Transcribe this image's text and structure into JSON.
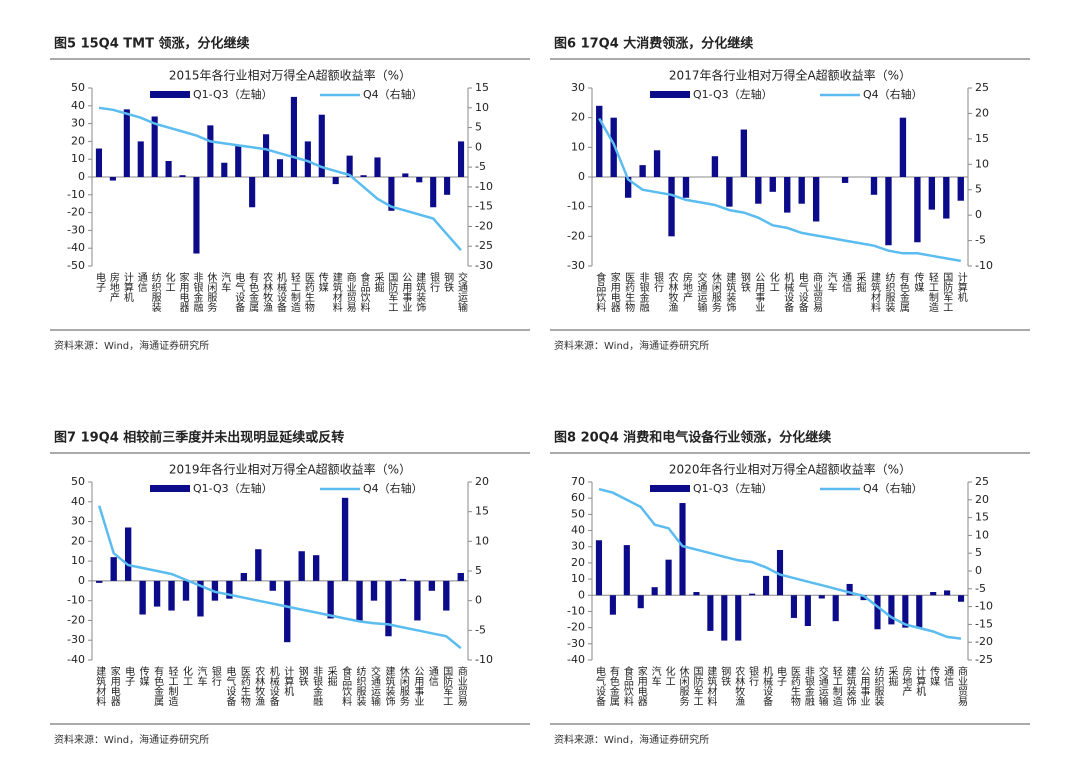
{
  "chart_data": [
    {
      "type": "bar_line",
      "caption": "图5 15Q4 TMT 领涨，分化继续",
      "title": "2015年各行业相对万得全A超额收益率（%）",
      "source": "资料来源：Wind，海通证券研究所",
      "categories": [
        "电子",
        "房地产",
        "计算机",
        "通信",
        "纺织服装",
        "化工",
        "家用电器",
        "非银金融",
        "休闲服务",
        "汽车",
        "电气设备",
        "有色金属",
        "农林牧渔",
        "机械设备",
        "轻工制造",
        "医药生物",
        "传媒",
        "建筑材料",
        "商业贸易",
        "食品饮料",
        "采掘",
        "国防军工",
        "公用事业",
        "建筑装饰",
        "银行",
        "钢铁",
        "交通运输"
      ],
      "series": [
        {
          "name": "Q1-Q3（左轴）",
          "color": "#0c0c8a",
          "values": [
            16,
            -2,
            38,
            20,
            34,
            9,
            1,
            -43,
            29,
            8,
            18,
            -17,
            24,
            10,
            45,
            20,
            35,
            -4,
            12,
            1,
            11,
            -19,
            2,
            -3,
            -17,
            -10,
            20
          ]
        },
        {
          "name": "Q4（右轴）",
          "color": "#5bbcf0",
          "axis": "y2",
          "values": [
            10,
            9.5,
            8.5,
            7.5,
            6,
            5,
            4,
            3,
            1.5,
            1,
            0.5,
            0,
            -0.5,
            -1.5,
            -2.5,
            -3.5,
            -5,
            -6,
            -7,
            -10,
            -13,
            -15,
            -16,
            -17,
            -18,
            -22,
            -26
          ]
        }
      ],
      "ylim": [
        -50,
        50
      ],
      "yticks": [
        -50,
        -40,
        -30,
        -20,
        -10,
        0,
        10,
        20,
        30,
        40,
        50
      ],
      "y2lim": [
        -30,
        15
      ],
      "y2ticks": [
        -30,
        -25,
        -20,
        -15,
        -10,
        -5,
        0,
        5,
        10,
        15
      ]
    },
    {
      "type": "bar_line",
      "caption": "图6 17Q4 大消费领涨，分化继续",
      "title": "2017年各行业相对万得全A超额收益率（%）",
      "source": "资料来源：Wind，海通证券研究所",
      "categories": [
        "食品饮料",
        "家用电器",
        "医药生物",
        "非银金融",
        "银行",
        "农林牧渔",
        "房地产",
        "交通运输",
        "休闲服务",
        "建筑装饰",
        "钢铁",
        "公用事业",
        "化工",
        "机械设备",
        "电气设备",
        "商业贸易",
        "汽车",
        "通信",
        "采掘",
        "建筑材料",
        "纺织服装",
        "有色金属",
        "传媒",
        "轻工制造",
        "国防军工",
        "计算机"
      ],
      "series": [
        {
          "name": "Q1-Q3（左轴）",
          "color": "#0c0c8a",
          "values": [
            24,
            20,
            -7,
            4,
            9,
            -20,
            -7,
            0,
            7,
            -10,
            16,
            -9,
            -5,
            -12,
            -9,
            -15,
            0,
            -2,
            0,
            -6,
            -23,
            20,
            -22,
            -11,
            -14,
            -8
          ]
        },
        {
          "name": "Q4（右轴）",
          "color": "#5bbcf0",
          "axis": "y2",
          "values": [
            19,
            14,
            7,
            5,
            4.5,
            4,
            3,
            2.5,
            2,
            1,
            0.5,
            -0.5,
            -2,
            -2.5,
            -3.5,
            -4,
            -4.5,
            -5,
            -5.5,
            -6,
            -7,
            -7.5,
            -7.5,
            -8,
            -8.5,
            -9
          ]
        }
      ],
      "ylim": [
        -30,
        30
      ],
      "yticks": [
        -30,
        -20,
        -10,
        0,
        10,
        20,
        30
      ],
      "y2lim": [
        -10,
        25
      ],
      "y2ticks": [
        -10,
        -5,
        0,
        5,
        10,
        15,
        20,
        25
      ]
    },
    {
      "type": "bar_line",
      "caption": "图7 19Q4 相较前三季度并未出现明显延续或反转",
      "title": "2019年各行业相对万得全A超额收益率（%）",
      "source": "资料来源：Wind，海通证券研究所",
      "categories": [
        "建筑材料",
        "家用电器",
        "电子",
        "传媒",
        "有色金属",
        "轻工制造",
        "化工",
        "汽车",
        "银行",
        "电气设备",
        "医药生物",
        "农林牧渔",
        "机械设备",
        "计算机",
        "钢铁",
        "非银金融",
        "采掘",
        "食品饮料",
        "纺织服装",
        "交通运输",
        "建筑装饰",
        "休闲服务",
        "公用事业",
        "通信",
        "国防军工",
        "商业贸易"
      ],
      "series": [
        {
          "name": "Q1-Q3（左轴）",
          "color": "#0c0c8a",
          "values": [
            -1,
            12,
            27,
            -17,
            -13,
            -15,
            -10,
            -18,
            -10,
            -9,
            4,
            16,
            -5,
            -31,
            15,
            13,
            -19,
            42,
            -20,
            -10,
            -28,
            1,
            -20,
            -5,
            -15,
            4
          ]
        },
        {
          "name": "Q4（右轴）",
          "color": "#5bbcf0",
          "axis": "y2",
          "values": [
            16,
            8,
            6,
            5.5,
            5,
            4.5,
            3.5,
            2.5,
            1.5,
            1,
            0.5,
            0,
            -0.5,
            -1,
            -1.5,
            -2,
            -2.5,
            -3,
            -3.5,
            -3.8,
            -4,
            -4.5,
            -5,
            -5.5,
            -6,
            -8
          ]
        }
      ],
      "ylim": [
        -40,
        50
      ],
      "yticks": [
        -40,
        -30,
        -20,
        -10,
        0,
        10,
        20,
        30,
        40,
        50
      ],
      "y2lim": [
        -10,
        20
      ],
      "y2ticks": [
        -10,
        -5,
        0,
        5,
        10,
        15,
        20
      ]
    },
    {
      "type": "bar_line",
      "caption": "图8 20Q4 消费和电气设备行业领涨，分化继续",
      "title": "2020年各行业相对万得全A超额收益率（%）",
      "source": "资料来源：Wind，海通证券研究所",
      "categories": [
        "电气设备",
        "有色金属",
        "食品饮料",
        "家用电器",
        "汽车",
        "化工",
        "休闲服务",
        "国防军工",
        "建筑材料",
        "钢铁",
        "农林牧渔",
        "银行",
        "机械设备",
        "电子",
        "医药生物",
        "非银金融",
        "交通运输",
        "轻工制造",
        "建筑装饰",
        "公用事业",
        "纺织服装",
        "采掘",
        "房地产",
        "计算机",
        "传媒",
        "通信",
        "商业贸易"
      ],
      "series": [
        {
          "name": "Q1-Q3（左轴）",
          "color": "#0c0c8a",
          "values": [
            34,
            -12,
            31,
            -8,
            5,
            22,
            57,
            2,
            -22,
            -28,
            -28,
            1,
            12,
            28,
            -14,
            -19,
            -2,
            -16,
            7,
            -3,
            -21,
            -18,
            -20,
            -20,
            2,
            3,
            -4
          ]
        },
        {
          "name": "Q4（右轴）",
          "color": "#5bbcf0",
          "axis": "y2",
          "values": [
            23,
            22,
            20,
            18,
            13,
            12,
            7,
            6,
            5,
            4,
            3,
            2.5,
            1,
            -1,
            -2,
            -3,
            -4,
            -5,
            -6,
            -7,
            -10,
            -13,
            -15,
            -16,
            -17,
            -18.5,
            -19
          ]
        }
      ],
      "ylim": [
        -40,
        70
      ],
      "yticks": [
        -40,
        -30,
        -20,
        -10,
        0,
        10,
        20,
        30,
        40,
        50,
        60,
        70
      ],
      "y2lim": [
        -25,
        25
      ],
      "y2ticks": [
        -25,
        -20,
        -15,
        -10,
        -5,
        0,
        5,
        10,
        15,
        20,
        25
      ]
    }
  ]
}
